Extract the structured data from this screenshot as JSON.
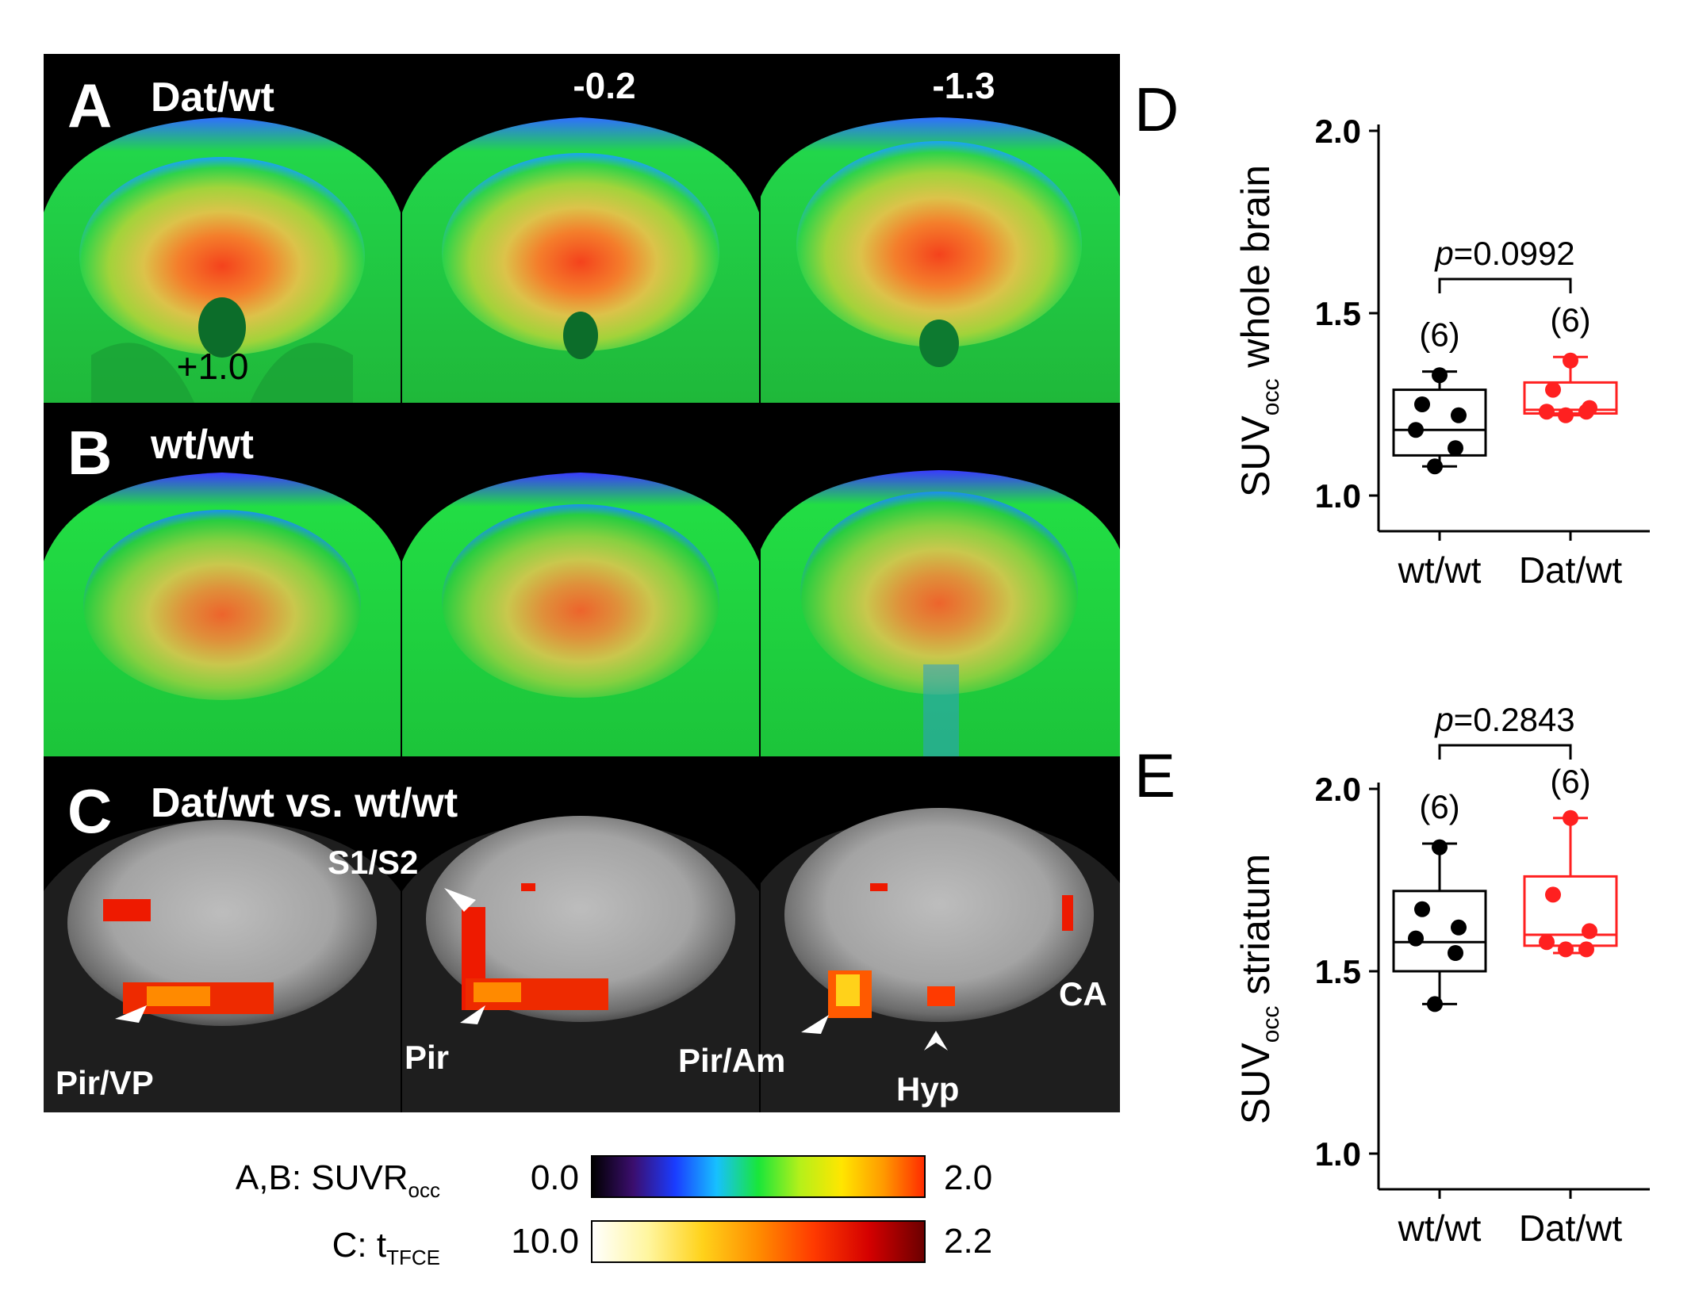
{
  "panels": {
    "A": {
      "letter": "A",
      "label": "Dat/wt",
      "slice_values": [
        "+1.0",
        "-0.2",
        "-1.3"
      ]
    },
    "B": {
      "letter": "B",
      "label": "wt/wt"
    },
    "C": {
      "letter": "C",
      "label": "Dat/wt vs. wt/wt",
      "annotations": [
        "S1/S2",
        "Pir/VP",
        "Pir",
        "Pir/Am",
        "Hyp",
        "CA"
      ]
    }
  },
  "colorbars": {
    "suvr": {
      "prefix": "A,B: SUVR",
      "subscript": "occ",
      "min_label": "0.0",
      "max_label": "2.0",
      "stops": [
        "#000000",
        "#3b0e6e",
        "#1a3cff",
        "#17c0ff",
        "#19e63a",
        "#b5f01a",
        "#ffe600",
        "#ff9a00",
        "#ff2a00"
      ]
    },
    "tfce": {
      "prefix": "C: t",
      "subscript": "TFCE",
      "min_label": "10.0",
      "max_label": "2.2",
      "stops": [
        "#ffffff",
        "#fff6a0",
        "#ffd21a",
        "#ff8c00",
        "#ff3a00",
        "#d40000",
        "#6a0000"
      ]
    }
  },
  "chart_data": [
    {
      "panel": "D",
      "type": "box",
      "ylabel_main": "SUV",
      "ylabel_sub": "occ",
      "ylabel_rest": "whole brain",
      "ylim": [
        1.0,
        2.0
      ],
      "yticks": [
        "1.0",
        "1.5",
        "2.0"
      ],
      "categories": [
        "wt/wt",
        "Dat/wt"
      ],
      "colors": [
        "#000000",
        "#ff2020"
      ],
      "n_labels": [
        "(6)",
        "(6)"
      ],
      "p_label": "p",
      "p_value": "=0.0992",
      "groups": [
        {
          "name": "wt/wt",
          "points": [
            1.33,
            1.25,
            1.22,
            1.18,
            1.13,
            1.08
          ],
          "box": {
            "min": 1.08,
            "q1": 1.11,
            "median": 1.18,
            "q3": 1.29,
            "max": 1.34
          }
        },
        {
          "name": "Dat/wt",
          "points": [
            1.37,
            1.29,
            1.24,
            1.23,
            1.23,
            1.22
          ],
          "box": {
            "min": 1.22,
            "q1": 1.225,
            "median": 1.235,
            "q3": 1.31,
            "max": 1.38
          }
        }
      ]
    },
    {
      "panel": "E",
      "type": "box",
      "ylabel_main": "SUV",
      "ylabel_sub": "occ",
      "ylabel_rest": "striatum",
      "ylim": [
        1.0,
        2.0
      ],
      "yticks": [
        "1.0",
        "1.5",
        "2.0"
      ],
      "categories": [
        "wt/wt",
        "Dat/wt"
      ],
      "colors": [
        "#000000",
        "#ff2020"
      ],
      "n_labels": [
        "(6)",
        "(6)"
      ],
      "p_label": "p",
      "p_value": "=0.2843",
      "groups": [
        {
          "name": "wt/wt",
          "points": [
            1.84,
            1.67,
            1.62,
            1.59,
            1.55,
            1.41
          ],
          "box": {
            "min": 1.41,
            "q1": 1.5,
            "median": 1.58,
            "q3": 1.72,
            "max": 1.85
          }
        },
        {
          "name": "Dat/wt",
          "points": [
            1.92,
            1.71,
            1.61,
            1.58,
            1.56,
            1.56
          ],
          "box": {
            "min": 1.55,
            "q1": 1.57,
            "median": 1.6,
            "q3": 1.76,
            "max": 1.92
          }
        }
      ]
    }
  ]
}
